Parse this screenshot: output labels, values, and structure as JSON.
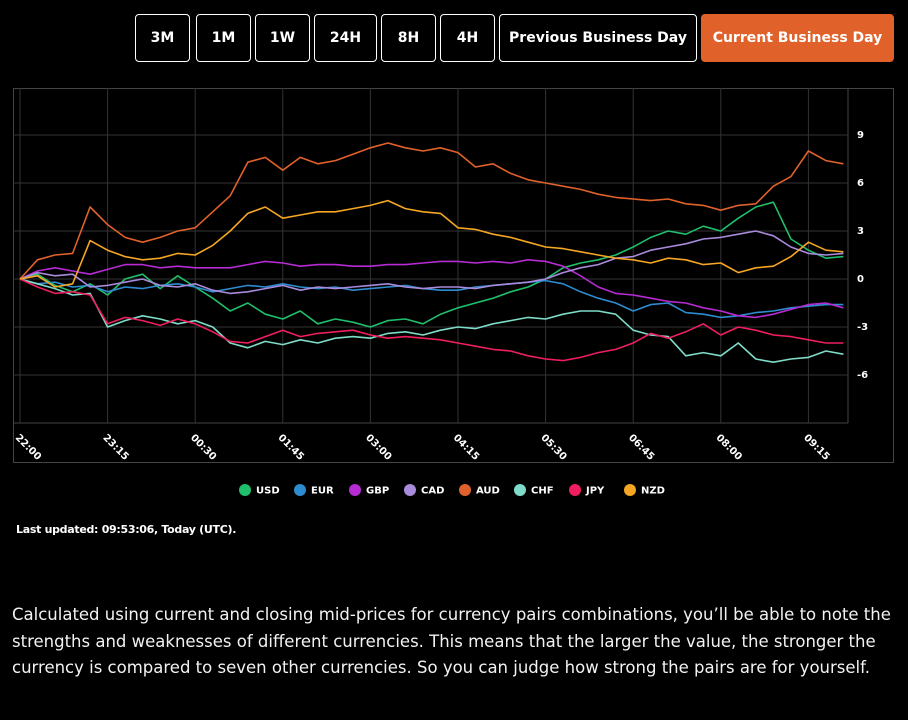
{
  "buttons": [
    "3M",
    "1M",
    "1W",
    "24H",
    "8H",
    "4H",
    "Previous Business Day",
    "Current Business Day"
  ],
  "chart_data": {
    "type": "line",
    "categories": [
      "22:00",
      null,
      null,
      null,
      null,
      "23:15",
      null,
      null,
      null,
      null,
      "00:30",
      null,
      null,
      null,
      null,
      "01:45",
      null,
      null,
      null,
      null,
      "03:00",
      null,
      null,
      null,
      null,
      "04:15",
      null,
      null,
      null,
      null,
      "05:30",
      null,
      null,
      null,
      null,
      "06:45",
      null,
      null,
      null,
      null,
      "08:00",
      null,
      null,
      null,
      null,
      "09:15",
      null,
      null
    ],
    "ylim": [
      -9,
      12
    ],
    "yticks": [
      -6,
      -3,
      0,
      3,
      6,
      9
    ],
    "grid": true,
    "legend": "bottom",
    "series": [
      {
        "name": "USD",
        "color": "#1fbf6b",
        "values": [
          0,
          0.3,
          -0.4,
          -0.8,
          -0.3,
          -1.0,
          0,
          0.3,
          -0.6,
          0.2,
          -0.5,
          -1.2,
          -2.0,
          -1.5,
          -2.2,
          -2.5,
          -2.0,
          -2.8,
          -2.5,
          -2.7,
          -3.0,
          -2.6,
          -2.5,
          -2.8,
          -2.2,
          -1.8,
          -1.5,
          -1.2,
          -0.8,
          -0.5,
          0,
          0.7,
          1.0,
          1.2,
          1.5,
          2.0,
          2.6,
          3.0,
          2.8,
          3.3,
          3.0,
          3.8,
          4.5,
          4.8,
          2.5,
          1.8,
          1.3,
          1.4
        ]
      },
      {
        "name": "EUR",
        "color": "#2e8bd0",
        "values": [
          0,
          -0.3,
          -0.2,
          -0.5,
          -0.4,
          -0.8,
          -0.5,
          -0.6,
          -0.4,
          -0.3,
          -0.5,
          -0.8,
          -0.6,
          -0.4,
          -0.5,
          -0.3,
          -0.5,
          -0.6,
          -0.5,
          -0.7,
          -0.6,
          -0.5,
          -0.4,
          -0.6,
          -0.7,
          -0.7,
          -0.5,
          -0.4,
          -0.3,
          -0.2,
          -0.1,
          -0.3,
          -0.8,
          -1.2,
          -1.5,
          -2.0,
          -1.6,
          -1.5,
          -2.1,
          -2.2,
          -2.4,
          -2.3,
          -2.1,
          -2.0,
          -1.8,
          -1.7,
          -1.6,
          -1.6
        ]
      },
      {
        "name": "GBP",
        "color": "#b62bd3",
        "values": [
          0,
          0.5,
          0.7,
          0.5,
          0.3,
          0.6,
          0.9,
          0.9,
          0.7,
          0.8,
          0.7,
          0.7,
          0.7,
          0.9,
          1.1,
          1.0,
          0.8,
          0.9,
          0.9,
          0.8,
          0.8,
          0.9,
          0.9,
          1.0,
          1.1,
          1.1,
          1.0,
          1.1,
          1.0,
          1.2,
          1.1,
          0.8,
          0.2,
          -0.5,
          -0.9,
          -1.0,
          -1.2,
          -1.4,
          -1.5,
          -1.8,
          -2.0,
          -2.3,
          -2.4,
          -2.2,
          -1.9,
          -1.6,
          -1.5,
          -1.8
        ]
      },
      {
        "name": "CAD",
        "color": "#a98bdc",
        "values": [
          0,
          0.4,
          0.2,
          0.3,
          -0.5,
          -0.4,
          -0.2,
          0,
          -0.4,
          -0.5,
          -0.3,
          -0.7,
          -0.9,
          -0.8,
          -0.6,
          -0.4,
          -0.7,
          -0.5,
          -0.6,
          -0.5,
          -0.4,
          -0.3,
          -0.5,
          -0.6,
          -0.5,
          -0.5,
          -0.6,
          -0.4,
          -0.3,
          -0.2,
          0,
          0.4,
          0.7,
          0.9,
          1.3,
          1.4,
          1.8,
          2.0,
          2.2,
          2.5,
          2.6,
          2.8,
          3.0,
          2.7,
          2.0,
          1.6,
          1.5,
          1.6
        ]
      },
      {
        "name": "AUD",
        "color": "#e0622a",
        "values": [
          0,
          1.2,
          1.5,
          1.6,
          4.5,
          3.4,
          2.6,
          2.3,
          2.6,
          3.0,
          3.2,
          4.2,
          5.2,
          7.3,
          7.6,
          6.8,
          7.6,
          7.2,
          7.4,
          7.8,
          8.2,
          8.5,
          8.2,
          8.0,
          8.2,
          7.9,
          7.0,
          7.2,
          6.6,
          6.2,
          6.0,
          5.8,
          5.6,
          5.3,
          5.1,
          5.0,
          4.9,
          5.0,
          4.7,
          4.6,
          4.3,
          4.6,
          4.7,
          5.8,
          6.4,
          8.0,
          7.4,
          7.2
        ]
      },
      {
        "name": "CHF",
        "color": "#7fdcc9",
        "values": [
          0,
          -0.3,
          -0.6,
          -1.0,
          -0.9,
          -3.0,
          -2.6,
          -2.3,
          -2.5,
          -2.8,
          -2.6,
          -3.0,
          -4.0,
          -4.3,
          -3.9,
          -4.1,
          -3.8,
          -4.0,
          -3.7,
          -3.6,
          -3.7,
          -3.4,
          -3.3,
          -3.5,
          -3.2,
          -3.0,
          -3.1,
          -2.8,
          -2.6,
          -2.4,
          -2.5,
          -2.2,
          -2.0,
          -2.0,
          -2.2,
          -3.2,
          -3.5,
          -3.6,
          -4.8,
          -4.6,
          -4.8,
          -4.0,
          -5.0,
          -5.2,
          -5.0,
          -4.9,
          -4.5,
          -4.7
        ]
      },
      {
        "name": "JPY",
        "color": "#ef1f5f",
        "values": [
          0,
          -0.5,
          -0.9,
          -0.8,
          -1.0,
          -2.8,
          -2.4,
          -2.6,
          -2.9,
          -2.5,
          -2.8,
          -3.3,
          -3.9,
          -4.0,
          -3.6,
          -3.2,
          -3.6,
          -3.4,
          -3.3,
          -3.2,
          -3.5,
          -3.7,
          -3.6,
          -3.7,
          -3.8,
          -4.0,
          -4.2,
          -4.4,
          -4.5,
          -4.8,
          -5.0,
          -5.1,
          -4.9,
          -4.6,
          -4.4,
          -4.0,
          -3.4,
          -3.7,
          -3.3,
          -2.8,
          -3.5,
          -3.0,
          -3.2,
          -3.5,
          -3.6,
          -3.8,
          -4.0,
          -4.0
        ]
      },
      {
        "name": "NZD",
        "color": "#f5a623",
        "values": [
          0,
          0.2,
          -0.5,
          -0.3,
          2.4,
          1.8,
          1.4,
          1.2,
          1.3,
          1.6,
          1.5,
          2.1,
          3.0,
          4.1,
          4.5,
          3.8,
          4.0,
          4.2,
          4.2,
          4.4,
          4.6,
          4.9,
          4.4,
          4.2,
          4.1,
          3.2,
          3.1,
          2.8,
          2.6,
          2.3,
          2.0,
          1.9,
          1.7,
          1.5,
          1.3,
          1.2,
          1.0,
          1.3,
          1.2,
          0.9,
          1.0,
          0.4,
          0.7,
          0.8,
          1.4,
          2.3,
          1.8,
          1.7
        ]
      }
    ]
  },
  "last_updated": "Last updated: 09:53:06, Today (UTC).",
  "description": "Calculated using current and closing mid-prices for currency pairs combinations, you’ll be able to note the strengths and weaknesses of different currencies. This means that the larger the value, the stronger the currency is compared to seven other currencies. So you can judge how strong the pairs are for yourself."
}
